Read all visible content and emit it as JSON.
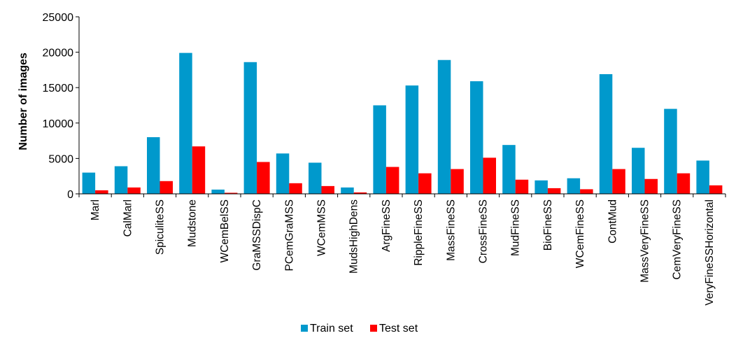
{
  "chart_data": {
    "type": "bar",
    "title": "",
    "xlabel": "",
    "ylabel": "Number of images",
    "ylim": [
      0,
      25000
    ],
    "yticks": [
      0,
      5000,
      10000,
      15000,
      20000,
      25000
    ],
    "grid": false,
    "legend_position": "bottom",
    "categories": [
      "Marl",
      "CalMarl",
      "SpiculiteSS",
      "Mudstone",
      "WCemBelSS",
      "GraMSSDispC",
      "PCemGraMSS",
      "WCemMSS",
      "MudsHighDens",
      "ArgFineSS",
      "RippleFineSS",
      "MassFineSS",
      "CrossFineSS",
      "MudFineSS",
      "BioFineSS",
      "WCemFineSS",
      "ContMud",
      "MassVeryFineSS",
      "CemVeryFineSS",
      "VeryFineSSHorizontal"
    ],
    "series": [
      {
        "name": "Train set",
        "color": "#0099CC",
        "values": [
          3000,
          3900,
          8000,
          19900,
          600,
          18600,
          5700,
          4400,
          900,
          12500,
          15300,
          18900,
          15900,
          6900,
          1900,
          2200,
          16900,
          6500,
          12000,
          4700
        ]
      },
      {
        "name": "Test set",
        "color": "#FF0000",
        "values": [
          500,
          900,
          1800,
          6700,
          150,
          4500,
          1500,
          1100,
          200,
          3800,
          2900,
          3500,
          5100,
          2000,
          800,
          650,
          3500,
          2100,
          2900,
          1200
        ]
      }
    ]
  }
}
